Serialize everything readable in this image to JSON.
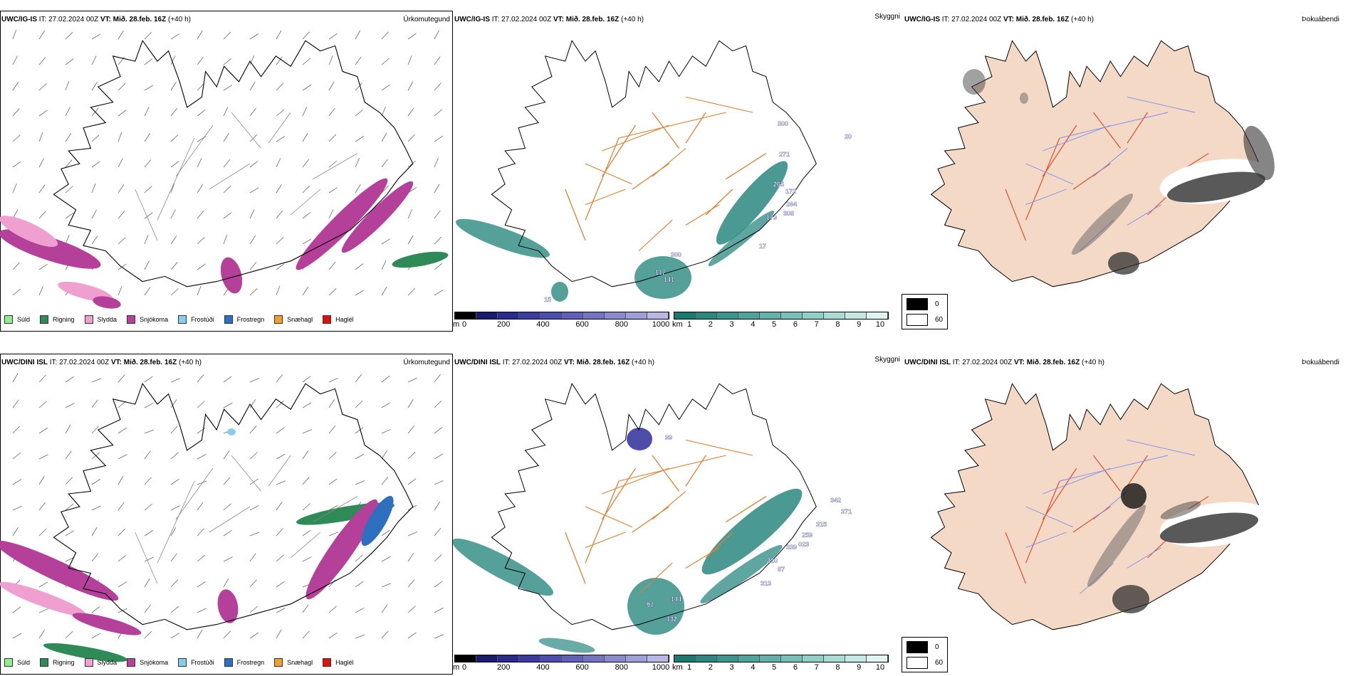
{
  "rows": [
    {
      "model": "UWC/IG-IS",
      "it_label": "IT:",
      "it_value": "27.02.2024 00Z",
      "vt_label": "VT:",
      "vt_value": "Mið. 28.feb. 16Z",
      "lead": "(+40 h)"
    },
    {
      "model": "UWC/DINI ISL",
      "it_label": "IT:",
      "it_value": "27.02.2024 00Z",
      "vt_label": "VT:",
      "vt_value": "Mið. 28.feb. 16Z",
      "lead": "(+40 h)"
    }
  ],
  "variables": {
    "precip_type": "Úrkomutegund",
    "visibility": "Skyggni",
    "fog": "Þokuábendi"
  },
  "precip_legend": [
    {
      "label": "Súld",
      "color": "#90ee90"
    },
    {
      "label": "Rigning",
      "color": "#2e8b57"
    },
    {
      "label": "Slydda",
      "color": "#f0a0d0"
    },
    {
      "label": "Snjókoma",
      "color": "#b5409a"
    },
    {
      "label": "Frostúði",
      "color": "#87ceeb"
    },
    {
      "label": "Frostregn",
      "color": "#2f6fbf"
    },
    {
      "label": "Snæhagl",
      "color": "#f0a030"
    },
    {
      "label": "Haglél",
      "color": "#e01010"
    }
  ],
  "vis_legend": {
    "m_unit": "m",
    "m_ticks": [
      "0",
      "200",
      "400",
      "600",
      "800",
      "1000"
    ],
    "m_colors": [
      "#000000",
      "#1a1a6e",
      "#2a2a8e",
      "#3a3aa0",
      "#4d4db0",
      "#6060b8",
      "#7474c2",
      "#8a8acc",
      "#a0a0d8",
      "#b8b8e4"
    ],
    "km_unit": "km",
    "km_ticks": [
      "1",
      "2",
      "3",
      "4",
      "5",
      "6",
      "7",
      "8",
      "9",
      "10"
    ],
    "km_colors": [
      "#1a7a72",
      "#2a8880",
      "#3a968e",
      "#4ea49c",
      "#62b2aa",
      "#78c0b8",
      "#90cec8",
      "#aadcd6",
      "#c4e8e4",
      "#e0f4f2"
    ]
  },
  "fog_legend": [
    {
      "label": "0",
      "color": "#000000"
    },
    {
      "label": "60",
      "color": "#ffffff"
    }
  ],
  "map_labels": {
    "row0": [
      "300",
      "271",
      "265",
      "172",
      "264",
      "308",
      "179",
      "17",
      "300",
      "117",
      "141",
      "15",
      "20"
    ],
    "row1": [
      "99",
      "342",
      "371",
      "315",
      "259",
      "339",
      "023",
      "220",
      "87",
      "313",
      "144",
      "132",
      "97"
    ]
  },
  "colors": {
    "coast": "#000000",
    "roads": "#e08030",
    "snow": "#b5409a",
    "rain": "#2e8b57",
    "vis_teal": "#2a8880",
    "land_fog": "#f3d9c6",
    "river": "#7b8ff0"
  }
}
